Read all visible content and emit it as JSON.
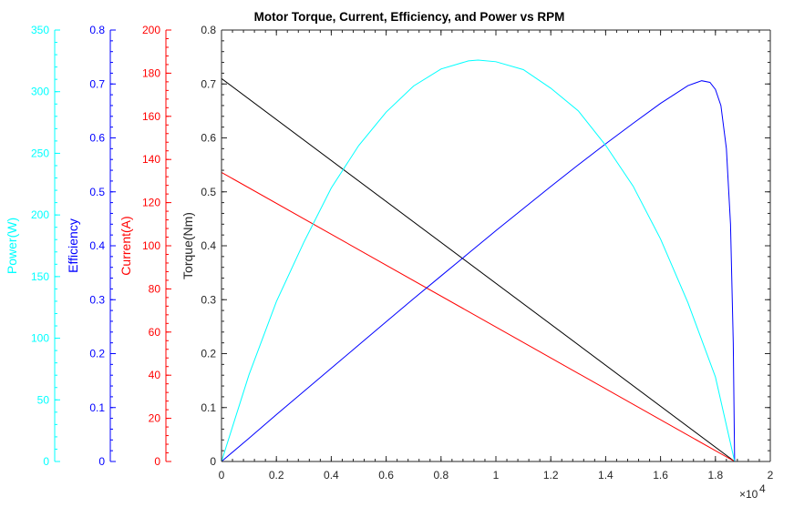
{
  "chart_data": {
    "type": "line",
    "title": "Motor Torque, Current, Efficiency, and Power vs RPM",
    "xlabel": "",
    "x_exponent_label": "×10",
    "x_exponent_power": "4",
    "x_scale_factor": 10000,
    "xlim": [
      0,
      20000
    ],
    "x_ticks": [
      0,
      2000,
      4000,
      6000,
      8000,
      10000,
      12000,
      14000,
      16000,
      18000,
      20000
    ],
    "x_tick_labels": [
      "0",
      "0.2",
      "0.4",
      "0.6",
      "0.8",
      "1",
      "1.2",
      "1.4",
      "1.6",
      "1.8",
      "2"
    ],
    "grid": false,
    "legend": "none",
    "axes": [
      {
        "id": "torque",
        "label": "Torque(Nm)",
        "color": "#000000",
        "ylim": [
          0,
          0.8
        ],
        "ticks": [
          "0",
          "0.1",
          "0.2",
          "0.3",
          "0.4",
          "0.5",
          "0.6",
          "0.7",
          "0.8"
        ]
      },
      {
        "id": "current",
        "label": "Current(A)",
        "color": "#ff0000",
        "ylim": [
          0,
          200
        ],
        "ticks": [
          "0",
          "20",
          "40",
          "60",
          "80",
          "100",
          "120",
          "140",
          "160",
          "180",
          "200"
        ]
      },
      {
        "id": "efficiency",
        "label": "Efficiency",
        "color": "#0000ff",
        "ylim": [
          0,
          0.8
        ],
        "ticks": [
          "0",
          "0.1",
          "0.2",
          "0.3",
          "0.4",
          "0.5",
          "0.6",
          "0.7",
          "0.8"
        ]
      },
      {
        "id": "power",
        "label": "Power(W)",
        "color": "#00ffff",
        "ylim": [
          0,
          350
        ],
        "ticks": [
          "0",
          "50",
          "100",
          "150",
          "200",
          "250",
          "300",
          "350"
        ]
      }
    ],
    "series": [
      {
        "axis": "torque",
        "color": "#000000",
        "x": [
          0,
          18700
        ],
        "y": [
          0.71,
          0
        ]
      },
      {
        "axis": "current",
        "color": "#ff0000",
        "x": [
          0,
          18700
        ],
        "y": [
          134,
          0
        ]
      },
      {
        "axis": "efficiency",
        "color": "#0000ff",
        "x": [
          0,
          1000,
          2000,
          3000,
          4000,
          5000,
          6000,
          7000,
          8000,
          9000,
          10000,
          11000,
          12000,
          13000,
          14000,
          15000,
          16000,
          17000,
          17500,
          17800,
          18000,
          18200,
          18400,
          18550,
          18650,
          18700
        ],
        "y": [
          0,
          0.043,
          0.087,
          0.13,
          0.173,
          0.216,
          0.259,
          0.302,
          0.344,
          0.386,
          0.428,
          0.469,
          0.51,
          0.55,
          0.589,
          0.627,
          0.664,
          0.697,
          0.706,
          0.703,
          0.69,
          0.66,
          0.58,
          0.44,
          0.22,
          0
        ]
      },
      {
        "axis": "power",
        "color": "#00ffff",
        "x": [
          0,
          1000,
          2000,
          3000,
          4000,
          5000,
          6000,
          7000,
          8000,
          9000,
          9350,
          10000,
          11000,
          12000,
          13000,
          14000,
          15000,
          16000,
          17000,
          18000,
          18700
        ],
        "y": [
          0,
          70.3,
          129.7,
          177.8,
          221.9,
          256.3,
          283.4,
          304.6,
          318.4,
          325.0,
          325.6,
          324.3,
          317.9,
          302.8,
          284.5,
          256.5,
          223.4,
          180.5,
          128.7,
          68.6,
          0
        ]
      }
    ]
  }
}
